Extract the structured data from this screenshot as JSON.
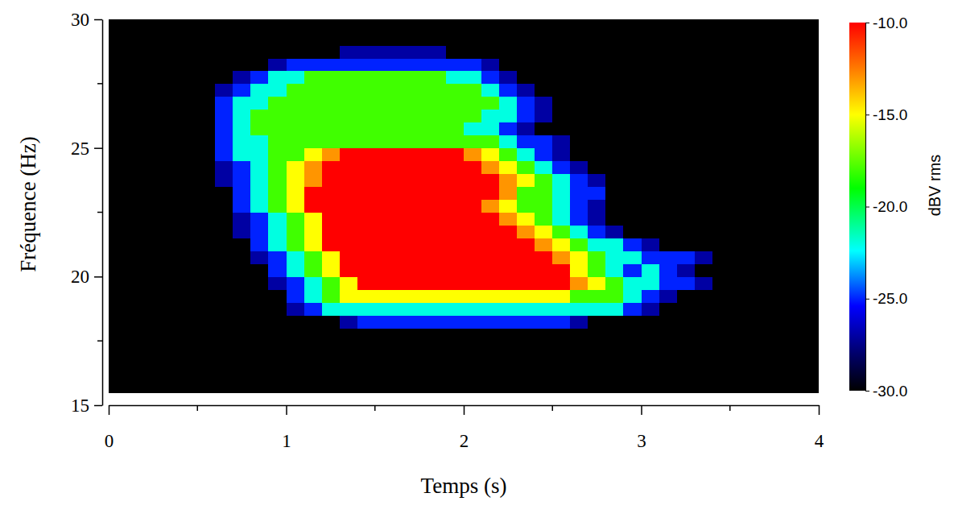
{
  "chart_data": {
    "type": "heatmap",
    "xlabel": "Temps (s)",
    "ylabel": "Fréquence (Hz)",
    "xlim": [
      0,
      4
    ],
    "ylim": [
      15,
      30
    ],
    "xticks": [
      0,
      1,
      2,
      3,
      4
    ],
    "yticks": [
      15,
      20,
      25,
      30
    ],
    "x_edges": [
      0,
      0.1,
      0.2,
      0.3,
      0.4,
      0.5,
      0.6,
      0.7,
      0.8,
      0.9,
      1,
      1.1,
      1.2,
      1.3,
      1.4,
      1.5,
      1.6,
      1.7,
      1.8,
      1.9,
      2,
      2.1,
      2.2,
      2.3,
      2.4,
      2.5,
      2.6,
      2.7,
      2.8,
      2.9,
      3,
      3.1,
      3.2,
      3.3,
      3.4,
      3.5,
      3.6,
      3.7,
      3.8,
      3.9,
      4
    ],
    "y_edges": [
      15.5,
      16,
      16.5,
      17,
      17.5,
      18,
      18.5,
      19,
      19.5,
      20,
      20.5,
      21,
      21.5,
      22,
      22.5,
      23,
      23.5,
      24,
      24.5,
      25,
      25.5,
      26,
      26.5,
      27,
      27.5,
      28,
      28.5,
      29,
      29.5,
      30
    ],
    "z": [
      [
        -30,
        -30,
        -30,
        -30,
        -30,
        -30,
        -30,
        -30,
        -30,
        -30,
        -30,
        -30,
        -30,
        -30,
        -30,
        -30,
        -30,
        -30,
        -30,
        -30,
        -30,
        -30,
        -30,
        -30,
        -30,
        -30,
        -30,
        -30,
        -30,
        -30,
        -30,
        -30,
        -30,
        -30,
        -30,
        -30,
        -30,
        -30,
        -30,
        -30
      ],
      [
        -30,
        -30,
        -30,
        -30,
        -30,
        -30,
        -30,
        -30,
        -30,
        -30,
        -30,
        -30,
        -30,
        -30,
        -30,
        -30,
        -30,
        -30,
        -30,
        -30,
        -30,
        -30,
        -30,
        -30,
        -30,
        -30,
        -30,
        -30,
        -30,
        -30,
        -30,
        -30,
        -30,
        -30,
        -30,
        -30,
        -30,
        -30,
        -30,
        -30
      ],
      [
        -30,
        -30,
        -30,
        -30,
        -30,
        -30,
        -30,
        -30,
        -30,
        -30,
        -30,
        -30,
        -30,
        -30,
        -30,
        -30,
        -30,
        -30,
        -30,
        -30,
        -30,
        -30,
        -30,
        -30,
        -30,
        -30,
        -30,
        -30,
        -30,
        -30,
        -30,
        -30,
        -30,
        -30,
        -30,
        -30,
        -30,
        -30,
        -30,
        -30
      ],
      [
        -30,
        -30,
        -30,
        -30,
        -30,
        -30,
        -30,
        -30,
        -30,
        -30,
        -30,
        -30,
        -30,
        -30,
        -30,
        -30,
        -30,
        -30,
        -30,
        -30,
        -30,
        -30,
        -30,
        -30,
        -30,
        -30,
        -30,
        -30,
        -30,
        -30,
        -30,
        -30,
        -30,
        -30,
        -30,
        -30,
        -30,
        -30,
        -30,
        -30
      ],
      [
        -30,
        -30,
        -30,
        -30,
        -30,
        -30,
        -30,
        -30,
        -30,
        -30,
        -30,
        -30,
        -30,
        -30,
        -30,
        -30,
        -30,
        -30,
        -30,
        -30,
        -30,
        -30,
        -30,
        -30,
        -30,
        -30,
        -30,
        -30,
        -30,
        -30,
        -30,
        -30,
        -30,
        -30,
        -30,
        -30,
        -30,
        -30,
        -30,
        -30
      ],
      [
        -30,
        -30,
        -30,
        -30,
        -30,
        -30,
        -30,
        -30,
        -30,
        -30,
        -30,
        -30,
        -30,
        -27,
        -25,
        -25,
        -25,
        -25,
        -25,
        -25,
        -25,
        -25,
        -25,
        -25,
        -25,
        -25,
        -27,
        -30,
        -30,
        -30,
        -30,
        -30,
        -30,
        -30,
        -30,
        -30,
        -30,
        -30,
        -30,
        -30
      ],
      [
        -30,
        -30,
        -30,
        -30,
        -30,
        -30,
        -30,
        -30,
        -30,
        -30,
        -27,
        -25,
        -22,
        -22,
        -22,
        -22,
        -22,
        -22,
        -22,
        -22,
        -22,
        -22,
        -22,
        -22,
        -22,
        -22,
        -22,
        -22,
        -22,
        -25,
        -27,
        -30,
        -30,
        -30,
        -30,
        -30,
        -30,
        -30,
        -30,
        -30
      ],
      [
        -30,
        -30,
        -30,
        -30,
        -30,
        -30,
        -30,
        -30,
        -30,
        -30,
        -25,
        -22,
        -18,
        -15,
        -15,
        -15,
        -15,
        -15,
        -15,
        -15,
        -15,
        -15,
        -15,
        -15,
        -15,
        -15,
        -18,
        -18,
        -18,
        -22,
        -25,
        -27,
        -30,
        -30,
        -30,
        -30,
        -30,
        -30,
        -30,
        -30
      ],
      [
        -30,
        -30,
        -30,
        -30,
        -30,
        -30,
        -30,
        -30,
        -30,
        -27,
        -25,
        -22,
        -18,
        -15,
        -10,
        -10,
        -10,
        -10,
        -10,
        -10,
        -10,
        -10,
        -10,
        -10,
        -10,
        -10,
        -13,
        -15,
        -18,
        -22,
        -22,
        -25,
        -25,
        -27,
        -30,
        -30,
        -30,
        -30,
        -30,
        -30
      ],
      [
        -30,
        -30,
        -30,
        -30,
        -30,
        -30,
        -30,
        -30,
        -30,
        -25,
        -22,
        -18,
        -15,
        -10,
        -10,
        -10,
        -10,
        -10,
        -10,
        -10,
        -10,
        -10,
        -10,
        -10,
        -10,
        -10,
        -15,
        -18,
        -22,
        -25,
        -22,
        -25,
        -27,
        -30,
        -30,
        -30,
        -30,
        -30,
        -30,
        -30
      ],
      [
        -30,
        -30,
        -30,
        -30,
        -30,
        -30,
        -30,
        -30,
        -27,
        -25,
        -22,
        -18,
        -15,
        -10,
        -10,
        -10,
        -10,
        -10,
        -10,
        -10,
        -10,
        -10,
        -10,
        -10,
        -10,
        -13,
        -15,
        -18,
        -22,
        -22,
        -25,
        -25,
        -25,
        -27,
        -30,
        -30,
        -30,
        -30,
        -30,
        -30
      ],
      [
        -30,
        -30,
        -30,
        -30,
        -30,
        -30,
        -30,
        -30,
        -25,
        -22,
        -18,
        -15,
        -10,
        -10,
        -10,
        -10,
        -10,
        -10,
        -10,
        -10,
        -10,
        -10,
        -10,
        -10,
        -13,
        -15,
        -18,
        -22,
        -22,
        -25,
        -27,
        -30,
        -30,
        -30,
        -30,
        -30,
        -30,
        -30,
        -30,
        -30
      ],
      [
        -30,
        -30,
        -30,
        -30,
        -30,
        -30,
        -30,
        -27,
        -25,
        -22,
        -18,
        -15,
        -10,
        -10,
        -10,
        -10,
        -10,
        -10,
        -10,
        -10,
        -10,
        -10,
        -10,
        -13,
        -15,
        -18,
        -22,
        -25,
        -27,
        -30,
        -30,
        -30,
        -30,
        -30,
        -30,
        -30,
        -30,
        -30,
        -30,
        -30
      ],
      [
        -30,
        -30,
        -30,
        -30,
        -30,
        -30,
        -30,
        -27,
        -25,
        -22,
        -18,
        -15,
        -10,
        -10,
        -10,
        -10,
        -10,
        -10,
        -10,
        -10,
        -10,
        -10,
        -13,
        -15,
        -18,
        -22,
        -25,
        -27,
        -30,
        -30,
        -30,
        -30,
        -30,
        -30,
        -30,
        -30,
        -30,
        -30,
        -30,
        -30
      ],
      [
        -30,
        -30,
        -30,
        -30,
        -30,
        -30,
        -30,
        -25,
        -22,
        -18,
        -15,
        -10,
        -10,
        -10,
        -10,
        -10,
        -10,
        -10,
        -10,
        -10,
        -10,
        -13,
        -15,
        -18,
        -18,
        -22,
        -25,
        -27,
        -30,
        -30,
        -30,
        -30,
        -30,
        -30,
        -30,
        -30,
        -30,
        -30,
        -30,
        -30
      ],
      [
        -30,
        -30,
        -30,
        -30,
        -30,
        -30,
        -30,
        -25,
        -22,
        -18,
        -15,
        -10,
        -10,
        -10,
        -10,
        -10,
        -10,
        -10,
        -10,
        -10,
        -10,
        -10,
        -13,
        -18,
        -18,
        -22,
        -25,
        -25,
        -30,
        -30,
        -30,
        -30,
        -30,
        -30,
        -30,
        -30,
        -30,
        -30,
        -30,
        -30
      ],
      [
        -30,
        -30,
        -30,
        -30,
        -30,
        -30,
        -27,
        -25,
        -22,
        -18,
        -15,
        -13,
        -10,
        -10,
        -10,
        -10,
        -10,
        -10,
        -10,
        -10,
        -10,
        -10,
        -13,
        -15,
        -18,
        -22,
        -25,
        -27,
        -30,
        -30,
        -30,
        -30,
        -30,
        -30,
        -30,
        -30,
        -30,
        -30,
        -30,
        -30
      ],
      [
        -30,
        -30,
        -30,
        -30,
        -30,
        -30,
        -27,
        -25,
        -22,
        -18,
        -15,
        -13,
        -10,
        -10,
        -10,
        -10,
        -10,
        -10,
        -10,
        -10,
        -10,
        -13,
        -15,
        -18,
        -22,
        -25,
        -27,
        -30,
        -30,
        -30,
        -30,
        -30,
        -30,
        -30,
        -30,
        -30,
        -30,
        -30,
        -30,
        -30
      ],
      [
        -30,
        -30,
        -30,
        -30,
        -30,
        -30,
        -25,
        -22,
        -22,
        -18,
        -18,
        -15,
        -13,
        -10,
        -10,
        -10,
        -10,
        -10,
        -10,
        -10,
        -13,
        -15,
        -18,
        -22,
        -25,
        -27,
        -30,
        -30,
        -30,
        -30,
        -30,
        -30,
        -30,
        -30,
        -30,
        -30,
        -30,
        -30,
        -30,
        -30
      ],
      [
        -30,
        -30,
        -30,
        -30,
        -30,
        -30,
        -25,
        -22,
        -22,
        -18,
        -18,
        -18,
        -18,
        -18,
        -18,
        -18,
        -18,
        -18,
        -18,
        -18,
        -18,
        -18,
        -22,
        -25,
        -25,
        -27,
        -30,
        -30,
        -30,
        -30,
        -30,
        -30,
        -30,
        -30,
        -30,
        -30,
        -30,
        -30,
        -30,
        -30
      ],
      [
        -30,
        -30,
        -30,
        -30,
        -30,
        -30,
        -25,
        -22,
        -18,
        -18,
        -18,
        -18,
        -18,
        -18,
        -18,
        -18,
        -18,
        -18,
        -18,
        -18,
        -22,
        -22,
        -25,
        -27,
        -30,
        -30,
        -30,
        -30,
        -30,
        -30,
        -30,
        -30,
        -30,
        -30,
        -30,
        -30,
        -30,
        -30,
        -30,
        -30
      ],
      [
        -30,
        -30,
        -30,
        -30,
        -30,
        -30,
        -25,
        -22,
        -18,
        -18,
        -18,
        -18,
        -18,
        -18,
        -18,
        -18,
        -18,
        -18,
        -18,
        -18,
        -18,
        -22,
        -22,
        -25,
        -27,
        -30,
        -30,
        -30,
        -30,
        -30,
        -30,
        -30,
        -30,
        -30,
        -30,
        -30,
        -30,
        -30,
        -30,
        -30
      ],
      [
        -30,
        -30,
        -30,
        -30,
        -30,
        -30,
        -25,
        -22,
        -22,
        -18,
        -18,
        -18,
        -18,
        -18,
        -18,
        -18,
        -18,
        -18,
        -18,
        -18,
        -18,
        -18,
        -22,
        -25,
        -27,
        -30,
        -30,
        -30,
        -30,
        -30,
        -30,
        -30,
        -30,
        -30,
        -30,
        -30,
        -30,
        -30,
        -30,
        -30
      ],
      [
        -30,
        -30,
        -30,
        -30,
        -30,
        -30,
        -27,
        -25,
        -22,
        -22,
        -18,
        -18,
        -18,
        -18,
        -18,
        -18,
        -18,
        -18,
        -18,
        -18,
        -18,
        -22,
        -25,
        -27,
        -30,
        -30,
        -30,
        -30,
        -30,
        -30,
        -30,
        -30,
        -30,
        -30,
        -30,
        -30,
        -30,
        -30,
        -30,
        -30
      ],
      [
        -30,
        -30,
        -30,
        -30,
        -30,
        -30,
        -30,
        -27,
        -25,
        -22,
        -22,
        -18,
        -18,
        -18,
        -18,
        -18,
        -18,
        -18,
        -18,
        -22,
        -22,
        -25,
        -27,
        -30,
        -30,
        -30,
        -30,
        -30,
        -30,
        -30,
        -30,
        -30,
        -30,
        -30,
        -30,
        -30,
        -30,
        -30,
        -30,
        -30
      ],
      [
        -30,
        -30,
        -30,
        -30,
        -30,
        -30,
        -30,
        -30,
        -30,
        -27,
        -25,
        -25,
        -25,
        -25,
        -25,
        -25,
        -25,
        -25,
        -25,
        -25,
        -25,
        -27,
        -30,
        -30,
        -30,
        -30,
        -30,
        -30,
        -30,
        -30,
        -30,
        -30,
        -30,
        -30,
        -30,
        -30,
        -30,
        -30,
        -30,
        -30
      ],
      [
        -30,
        -30,
        -30,
        -30,
        -30,
        -30,
        -30,
        -30,
        -30,
        -30,
        -30,
        -30,
        -30,
        -27,
        -27,
        -27,
        -27,
        -27,
        -27,
        -30,
        -30,
        -30,
        -30,
        -30,
        -30,
        -30,
        -30,
        -30,
        -30,
        -30,
        -30,
        -30,
        -30,
        -30,
        -30,
        -30,
        -30,
        -30,
        -30,
        -30
      ],
      [
        -30,
        -30,
        -30,
        -30,
        -30,
        -30,
        -30,
        -30,
        -30,
        -30,
        -30,
        -30,
        -30,
        -30,
        -30,
        -30,
        -30,
        -30,
        -30,
        -30,
        -30,
        -30,
        -30,
        -30,
        -30,
        -30,
        -30,
        -30,
        -30,
        -30,
        -30,
        -30,
        -30,
        -30,
        -30,
        -30,
        -30,
        -30,
        -30,
        -30
      ],
      [
        -30,
        -30,
        -30,
        -30,
        -30,
        -30,
        -30,
        -30,
        -30,
        -30,
        -30,
        -30,
        -30,
        -30,
        -30,
        -30,
        -30,
        -30,
        -30,
        -30,
        -30,
        -30,
        -30,
        -30,
        -30,
        -30,
        -30,
        -30,
        -30,
        -30,
        -30,
        -30,
        -30,
        -30,
        -30,
        -30,
        -30,
        -30,
        -30,
        -30
      ]
    ],
    "colorbar": {
      "label": "dBV rms",
      "range": [
        -30,
        -10
      ],
      "ticks": [
        {
          "value": -10,
          "label": "-10.0"
        },
        {
          "value": -15,
          "label": "-15.0"
        },
        {
          "value": -20,
          "label": "-20.0"
        },
        {
          "value": -25,
          "label": "-25.0"
        },
        {
          "value": -30,
          "label": "-30.0"
        }
      ]
    }
  }
}
